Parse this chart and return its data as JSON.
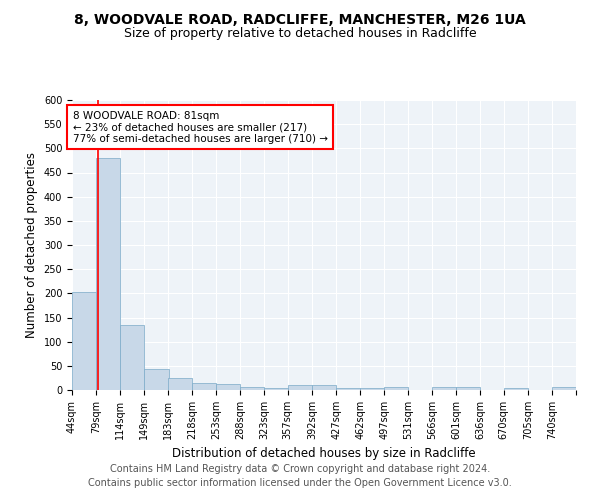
{
  "title1": "8, WOODVALE ROAD, RADCLIFFE, MANCHESTER, M26 1UA",
  "title2": "Size of property relative to detached houses in Radcliffe",
  "xlabel": "Distribution of detached houses by size in Radcliffe",
  "ylabel": "Number of detached properties",
  "footnote1": "Contains HM Land Registry data © Crown copyright and database right 2024.",
  "footnote2": "Contains public sector information licensed under the Open Government Licence v3.0.",
  "bin_labels": [
    "44sqm",
    "79sqm",
    "114sqm",
    "149sqm",
    "183sqm",
    "218sqm",
    "253sqm",
    "288sqm",
    "323sqm",
    "357sqm",
    "392sqm",
    "427sqm",
    "462sqm",
    "497sqm",
    "531sqm",
    "566sqm",
    "601sqm",
    "636sqm",
    "670sqm",
    "705sqm",
    "740sqm"
  ],
  "bar_heights": [
    203,
    480,
    135,
    43,
    25,
    14,
    13,
    7,
    4,
    10,
    10,
    5,
    4,
    7,
    0,
    6,
    7,
    0,
    5,
    0,
    6
  ],
  "bar_color": "#c8d8e8",
  "bar_edge_color": "#7aaac8",
  "annotation_text": "8 WOODVALE ROAD: 81sqm\n← 23% of detached houses are smaller (217)\n77% of semi-detached houses are larger (710) →",
  "annotation_box_color": "white",
  "annotation_box_edge": "red",
  "red_line_color": "red",
  "ylim": [
    0,
    600
  ],
  "yticks": [
    0,
    50,
    100,
    150,
    200,
    250,
    300,
    350,
    400,
    450,
    500,
    550,
    600
  ],
  "background_color": "#eef3f8",
  "grid_color": "white",
  "title1_fontsize": 10,
  "title2_fontsize": 9,
  "xlabel_fontsize": 8.5,
  "ylabel_fontsize": 8.5,
  "tick_fontsize": 7,
  "annotation_fontsize": 7.5,
  "footnote_fontsize": 7,
  "bin_edges": [
    44,
    79,
    114,
    149,
    183,
    218,
    253,
    288,
    323,
    357,
    392,
    427,
    462,
    497,
    531,
    566,
    601,
    636,
    670,
    705,
    740
  ],
  "bin_width": 35,
  "red_line_x": 81
}
